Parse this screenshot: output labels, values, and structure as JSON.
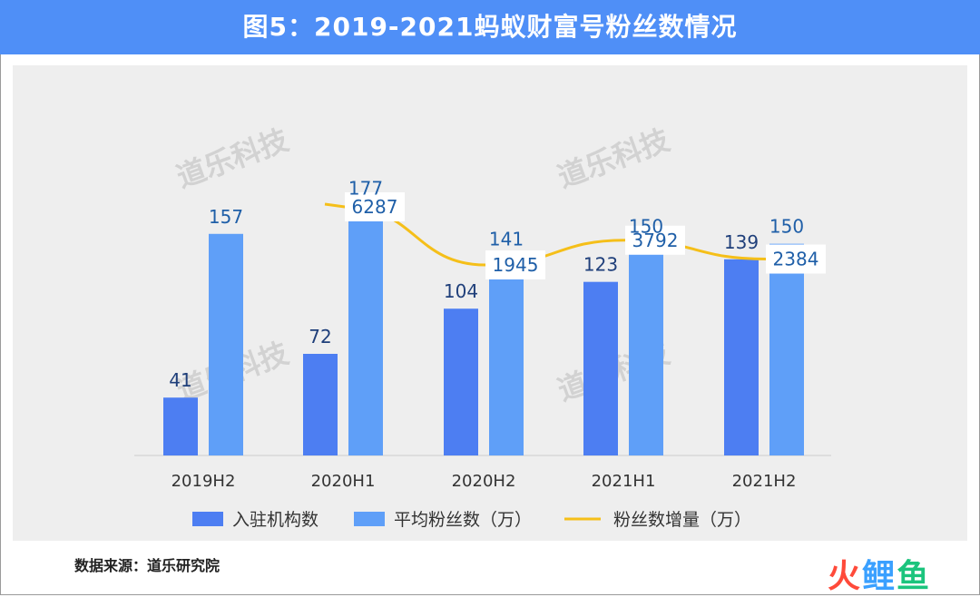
{
  "header": {
    "title": "图5：2019-2021蚂蚁财富号粉丝数情况"
  },
  "watermark": {
    "text": "道乐科技"
  },
  "source": {
    "text": "数据来源：道乐研究院"
  },
  "brand": {
    "text": "火鲤鱼",
    "colors": [
      "#ff4a3a",
      "#3aa0ff",
      "#1bc47d"
    ]
  },
  "colors": {
    "header_bg": "#4f8ff7",
    "bar_institutions": "#4d7ef2",
    "bar_avg_fans": "#5f9ff8",
    "line_fan_increase": "#f5bf19",
    "value_label": "#1f3f7a",
    "panel_bg": "#eeeeee"
  },
  "chart_data": {
    "type": "bar",
    "categories": [
      "2019H2",
      "2020H1",
      "2020H2",
      "2021H1",
      "2021H2"
    ],
    "series": [
      {
        "name": "入驻机构数",
        "type": "bar",
        "values": [
          41,
          72,
          104,
          123,
          139
        ]
      },
      {
        "name": "平均粉丝数（万）",
        "type": "bar",
        "values": [
          157,
          177,
          141,
          150,
          150
        ]
      },
      {
        "name": "粉丝数增量（万）",
        "type": "line",
        "values": [
          null,
          6287,
          1945,
          3792,
          2384
        ]
      }
    ],
    "bar_ylim": [
      0,
      190
    ],
    "line_ylim": [
      0,
      7500
    ],
    "legend_position": "bottom",
    "grid": false
  }
}
